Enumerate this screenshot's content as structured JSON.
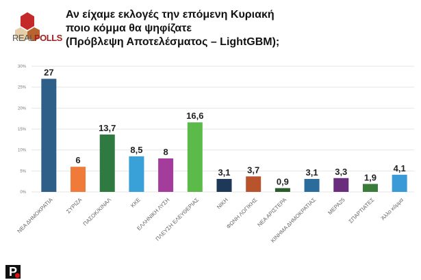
{
  "header": {
    "title_lines": [
      "Αν είχαμε εκλογές την επόμενη Κυριακή",
      "ποιο κόμμα θα ψηφίζατε",
      "(Πρόβλεψη Αποτελέσματος – LightGBM);"
    ],
    "logo_text_a": "REAL",
    "logo_text_b": "POLLS"
  },
  "footer": {
    "logo_letter": "P"
  },
  "chart_data": {
    "type": "bar",
    "title": "Αν είχαμε εκλογές την επόμενη Κυριακή ποιο κόμμα θα ψηφίζατε (Πρόβλεψη Αποτελέσματος – LightGBM);",
    "categories": [
      "ΝΕΑ ΔΗΜΟΚΡΑΤΙΑ",
      "ΣΥΡΙΖΑ",
      "ΠΑΣΟΚ/ΚΙΝΑΛ",
      "ΚΚΕ",
      "ΕΛΛΗΝΙΚΗ ΛΥΣΗ",
      "ΠΛΕΥΣΗ ΕΛΕΥΘΕΡΙΑΣ",
      "ΝΙΚΗ",
      "ΦΩΝΗ ΛΟΓΙΚΗΣ",
      "ΝΕΑ ΑΡΙΣΤΕΡΑ",
      "ΚΙΝΗΜΑ ΔΗΜΟΚΡΑΤΙΑΣ",
      "ΜΕΡΑ25",
      "ΣΠΑΡΤΙΑΤΕΣ",
      "Άλλο κόμμα"
    ],
    "values": [
      27,
      6,
      13.7,
      8.5,
      8,
      16.6,
      3.1,
      3.7,
      0.9,
      3.1,
      3.3,
      1.9,
      4.1
    ],
    "labels": [
      "27",
      "6",
      "13,7",
      "8,5",
      "8",
      "16,6",
      "3,1",
      "3,7",
      "0,9",
      "3,1",
      "3,3",
      "1,9",
      "4,1"
    ],
    "colors": [
      "#2d5f88",
      "#f07a3a",
      "#2f7a40",
      "#3aa0d8",
      "#a43c9c",
      "#5cba4a",
      "#1e3858",
      "#b8532c",
      "#2b5a2b",
      "#2a6c9c",
      "#6a2c7c",
      "#3a7c3a",
      "#3a9ad8"
    ],
    "yticks": [
      "0%",
      "5%",
      "10%",
      "15%",
      "20%",
      "25%",
      "30%"
    ],
    "ylim": [
      0,
      30
    ],
    "grid": true,
    "xlabel": "",
    "ylabel": ""
  }
}
